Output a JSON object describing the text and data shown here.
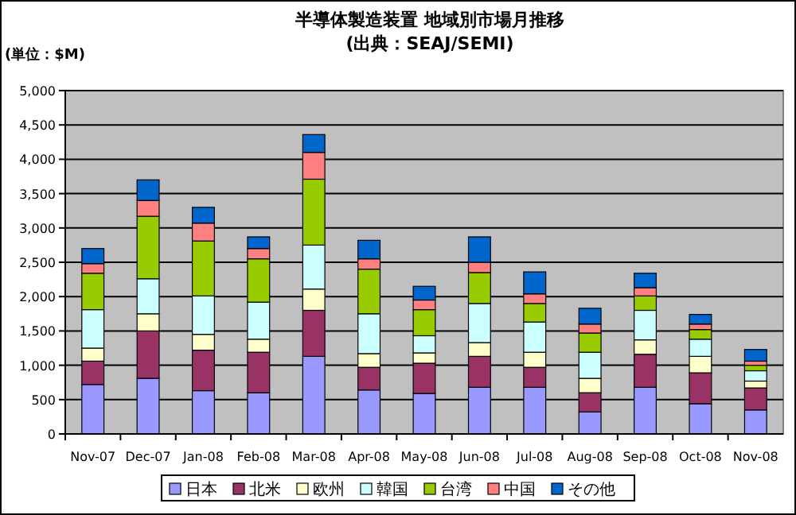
{
  "chart_data": {
    "type": "bar",
    "stacked": true,
    "title": "半導体製造装置 地域別市場月推移",
    "subtitle": "(出典：SEAJ/SEMI)",
    "ylabel": "(単位：$M)",
    "categories": [
      "Nov-07",
      "Dec-07",
      "Jan-08",
      "Feb-08",
      "Mar-08",
      "Apr-08",
      "May-08",
      "Jun-08",
      "Jul-08",
      "Aug-08",
      "Sep-08",
      "Oct-08",
      "Nov-08"
    ],
    "ylim": [
      0,
      5000
    ],
    "yticks": [
      {
        "value": 0,
        "label": "0"
      },
      {
        "value": 500,
        "label": "500"
      },
      {
        "value": 1000,
        "label": "1,000"
      },
      {
        "value": 1500,
        "label": "1,500"
      },
      {
        "value": 2000,
        "label": "2,000"
      },
      {
        "value": 2500,
        "label": "2,500"
      },
      {
        "value": 3000,
        "label": "3,000"
      },
      {
        "value": 3500,
        "label": "3,500"
      },
      {
        "value": 4000,
        "label": "4,000"
      },
      {
        "value": 4500,
        "label": "4,500"
      },
      {
        "value": 5000,
        "label": "5,000"
      }
    ],
    "grid": "y",
    "legend": "bottom",
    "series": [
      {
        "name": "日本",
        "color": "#9999ff",
        "values": [
          720,
          810,
          630,
          600,
          1130,
          640,
          590,
          680,
          680,
          320,
          680,
          440,
          350
        ]
      },
      {
        "name": "北米",
        "color": "#993366",
        "values": [
          340,
          690,
          590,
          590,
          670,
          330,
          440,
          450,
          290,
          280,
          480,
          450,
          320
        ]
      },
      {
        "name": "欧州",
        "color": "#ffffcc",
        "values": [
          190,
          250,
          230,
          190,
          310,
          200,
          150,
          200,
          220,
          210,
          210,
          240,
          100
        ]
      },
      {
        "name": "韓国",
        "color": "#ccffff",
        "values": [
          560,
          510,
          560,
          540,
          640,
          580,
          250,
          570,
          440,
          380,
          430,
          250,
          150
        ]
      },
      {
        "name": "台湾",
        "color": "#99cc00",
        "values": [
          530,
          910,
          800,
          630,
          960,
          650,
          380,
          450,
          270,
          280,
          210,
          140,
          80
        ]
      },
      {
        "name": "中国",
        "color": "#ff8080",
        "values": [
          140,
          230,
          260,
          150,
          390,
          150,
          140,
          150,
          140,
          130,
          120,
          80,
          60
        ]
      },
      {
        "name": "その他",
        "color": "#0066cc",
        "values": [
          220,
          300,
          230,
          170,
          260,
          270,
          200,
          370,
          320,
          230,
          210,
          140,
          170
        ]
      }
    ]
  }
}
